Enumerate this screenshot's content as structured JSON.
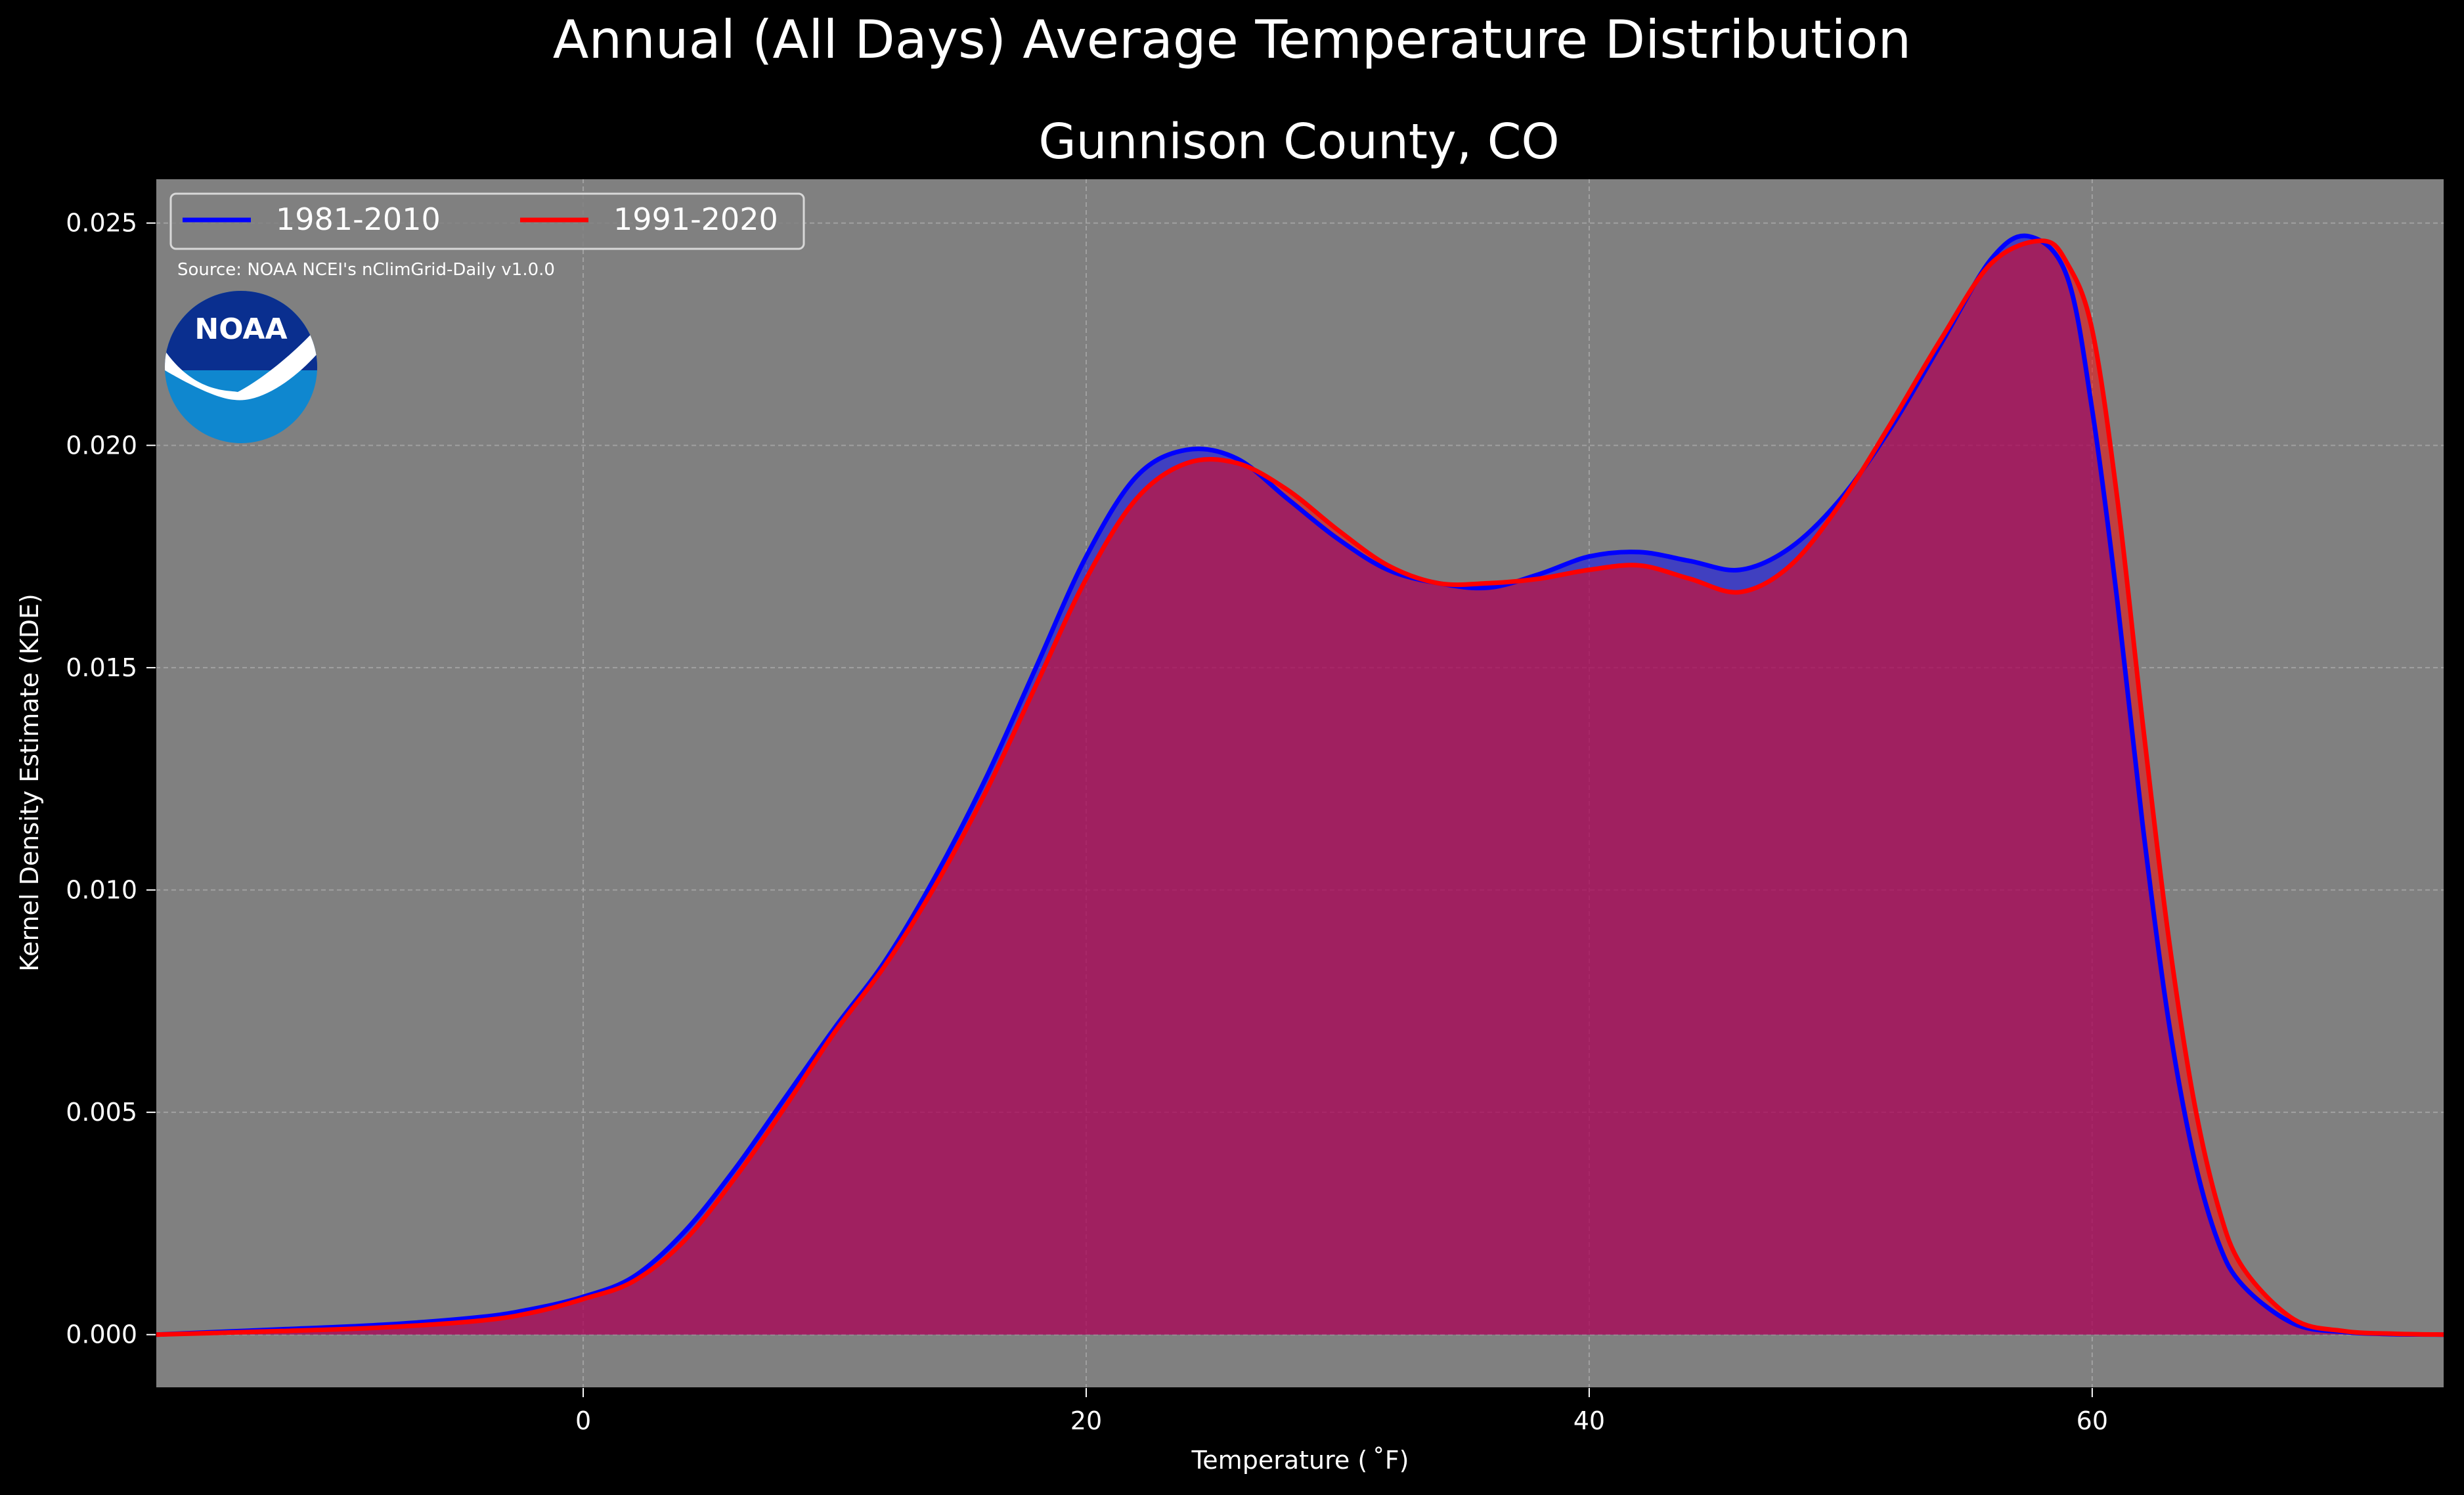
{
  "chart_data": {
    "type": "area",
    "title": "Annual (All Days) Average Temperature Distribution",
    "subtitle": "Gunnison County, CO",
    "xlabel": "Temperature ($^\\circ$F)",
    "xlabel_display": "Temperature ( ˚F)",
    "ylabel": "Kernel Density Estimate (KDE)",
    "source_note": "Source: NOAA NCEI's nClimGrid-Daily v1.0.0",
    "logo_text": "NOAA",
    "xlim": [
      -17,
      74
    ],
    "ylim": [
      -0.0012,
      0.026
    ],
    "x_ticks": [
      0,
      20,
      40,
      60
    ],
    "x_tick_labels": [
      "0",
      "20",
      "40",
      "60"
    ],
    "y_ticks": [
      0.0,
      0.005,
      0.01,
      0.015,
      0.02,
      0.025
    ],
    "y_tick_labels": [
      "0.000",
      "0.005",
      "0.010",
      "0.015",
      "0.020",
      "0.025"
    ],
    "grid": true,
    "legend_position": "top-left",
    "colors": {
      "background": "#000000",
      "axes_face": "#808080",
      "grid": "#b0b0b0",
      "series_1981": "#0000ff",
      "series_1991": "#ff0000",
      "fill_1981": "rgba(0,0,255,0.5)",
      "fill_1991": "rgba(255,0,0,0.5)",
      "noaa_dark": "#0a2f8f",
      "noaa_light": "#0f87cf"
    },
    "series": [
      {
        "name": "1981-2010",
        "color": "#0000ff",
        "x": [
          -17,
          -12,
          -8,
          -4,
          -2,
          0,
          2,
          4,
          6,
          8,
          10,
          12,
          14,
          16,
          18,
          20,
          22,
          24,
          26,
          28,
          30,
          32,
          34,
          36,
          38,
          40,
          42,
          44,
          46,
          48,
          50,
          52,
          54,
          56,
          57.5,
          59,
          60,
          61,
          62,
          63,
          64,
          65,
          66,
          68,
          70,
          72,
          74
        ],
        "y": [
          0.0,
          0.00012,
          0.00022,
          0.0004,
          0.00058,
          0.00085,
          0.0013,
          0.0023,
          0.0037,
          0.0053,
          0.0069,
          0.0084,
          0.0103,
          0.0125,
          0.015,
          0.0175,
          0.0193,
          0.0199,
          0.0197,
          0.0188,
          0.0179,
          0.0172,
          0.0169,
          0.0168,
          0.0171,
          0.0175,
          0.0176,
          0.0174,
          0.0172,
          0.0177,
          0.0188,
          0.0204,
          0.0223,
          0.0242,
          0.0247,
          0.0238,
          0.0208,
          0.0165,
          0.0115,
          0.0072,
          0.0041,
          0.0021,
          0.0011,
          0.00025,
          6e-05,
          1e-05,
          0.0
        ]
      },
      {
        "name": "1991-2020",
        "color": "#ff0000",
        "x": [
          -17,
          -12,
          -8,
          -4,
          -2,
          0,
          2,
          4,
          6,
          8,
          10,
          12,
          14,
          16,
          18,
          20,
          22,
          24,
          26,
          28,
          30,
          32,
          34,
          36,
          38,
          40,
          42,
          44,
          46,
          48,
          50,
          52,
          54,
          56,
          58,
          59,
          60,
          61,
          62,
          63,
          64,
          65,
          66,
          68,
          70,
          72,
          74
        ],
        "y": [
          0.0,
          8e-05,
          0.00016,
          0.00032,
          0.0005,
          0.0008,
          0.0012,
          0.0021,
          0.0035,
          0.0051,
          0.0068,
          0.0083,
          0.0101,
          0.0122,
          0.0146,
          0.017,
          0.0188,
          0.0196,
          0.0196,
          0.019,
          0.0181,
          0.0173,
          0.0169,
          0.0169,
          0.017,
          0.0172,
          0.0173,
          0.017,
          0.0167,
          0.0173,
          0.0187,
          0.0205,
          0.0224,
          0.0241,
          0.0246,
          0.0241,
          0.0226,
          0.0188,
          0.0138,
          0.0091,
          0.0054,
          0.0029,
          0.0015,
          0.00035,
          8e-05,
          2e-05,
          0.0
        ]
      }
    ]
  }
}
